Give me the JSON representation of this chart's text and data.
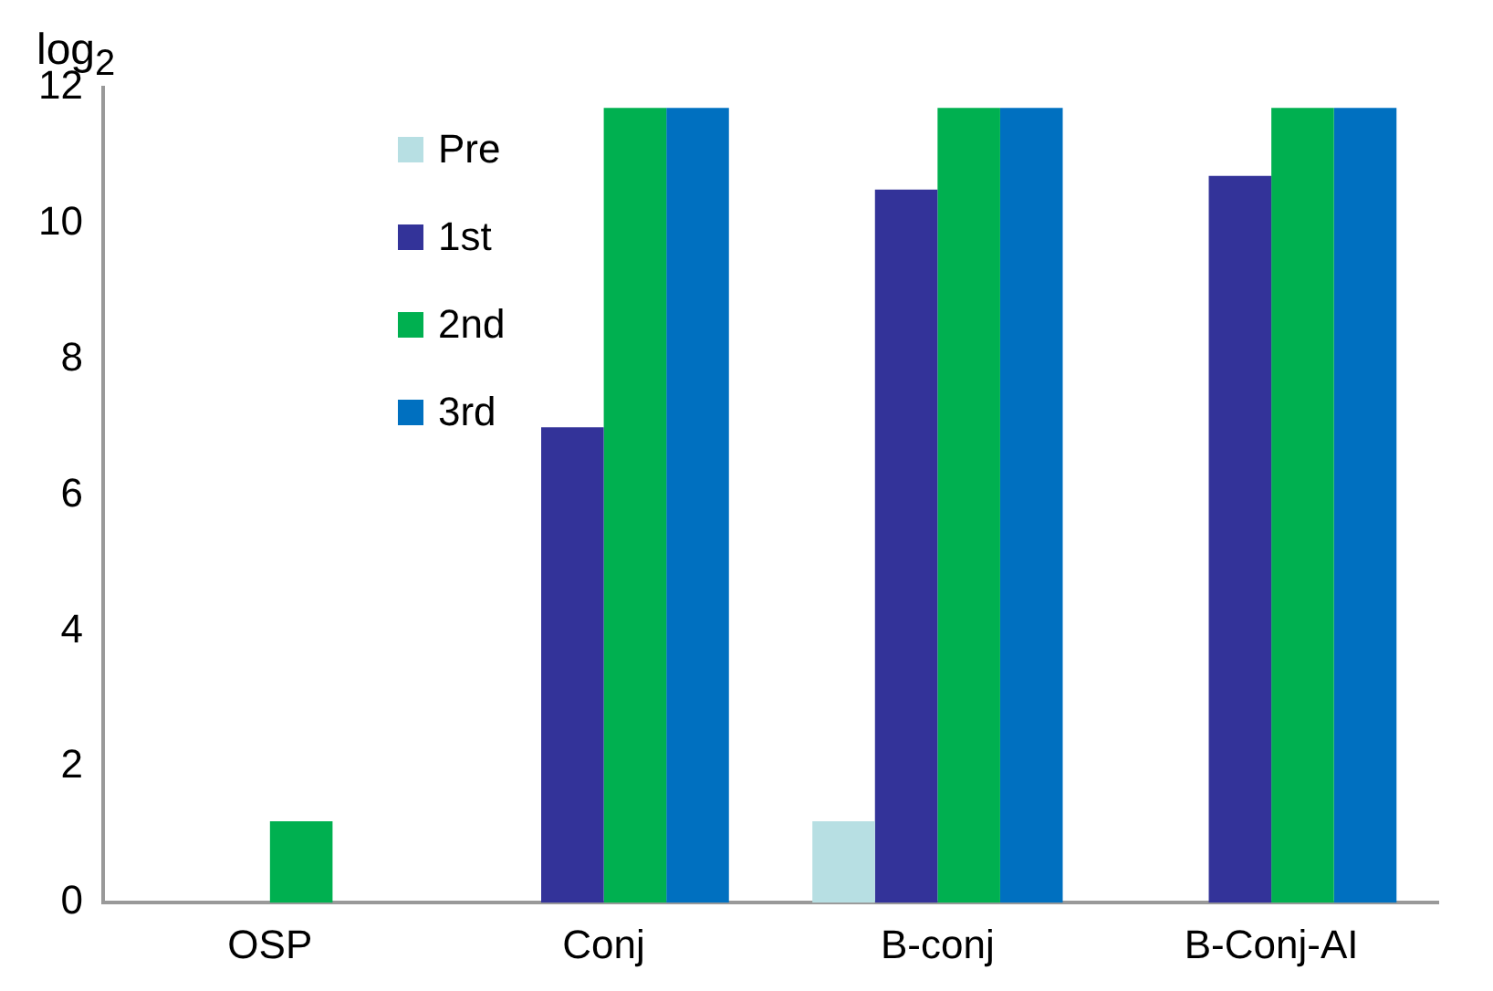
{
  "chart_data": {
    "type": "bar",
    "ylabel": "log$_{2}$",
    "categories": [
      "OSP",
      "Conj",
      "B-conj",
      "B-Conj-AI"
    ],
    "series": [
      {
        "name": "Pre",
        "color": "#b7dfe3",
        "values": [
          0,
          0,
          1.2,
          0
        ]
      },
      {
        "name": "1st",
        "color": "#333399",
        "values": [
          0,
          7,
          10.5,
          10.7
        ]
      },
      {
        "name": "2nd",
        "color": "#00b050",
        "values": [
          1.2,
          11.7,
          11.7,
          11.7
        ]
      },
      {
        "name": "3rd",
        "color": "#0070c0",
        "values": [
          0,
          11.7,
          11.7,
          11.7
        ]
      }
    ],
    "ylim": [
      0,
      12
    ],
    "yticks": [
      0,
      2,
      4,
      6,
      8,
      10,
      12
    ],
    "grid": false,
    "legend": "top left"
  }
}
